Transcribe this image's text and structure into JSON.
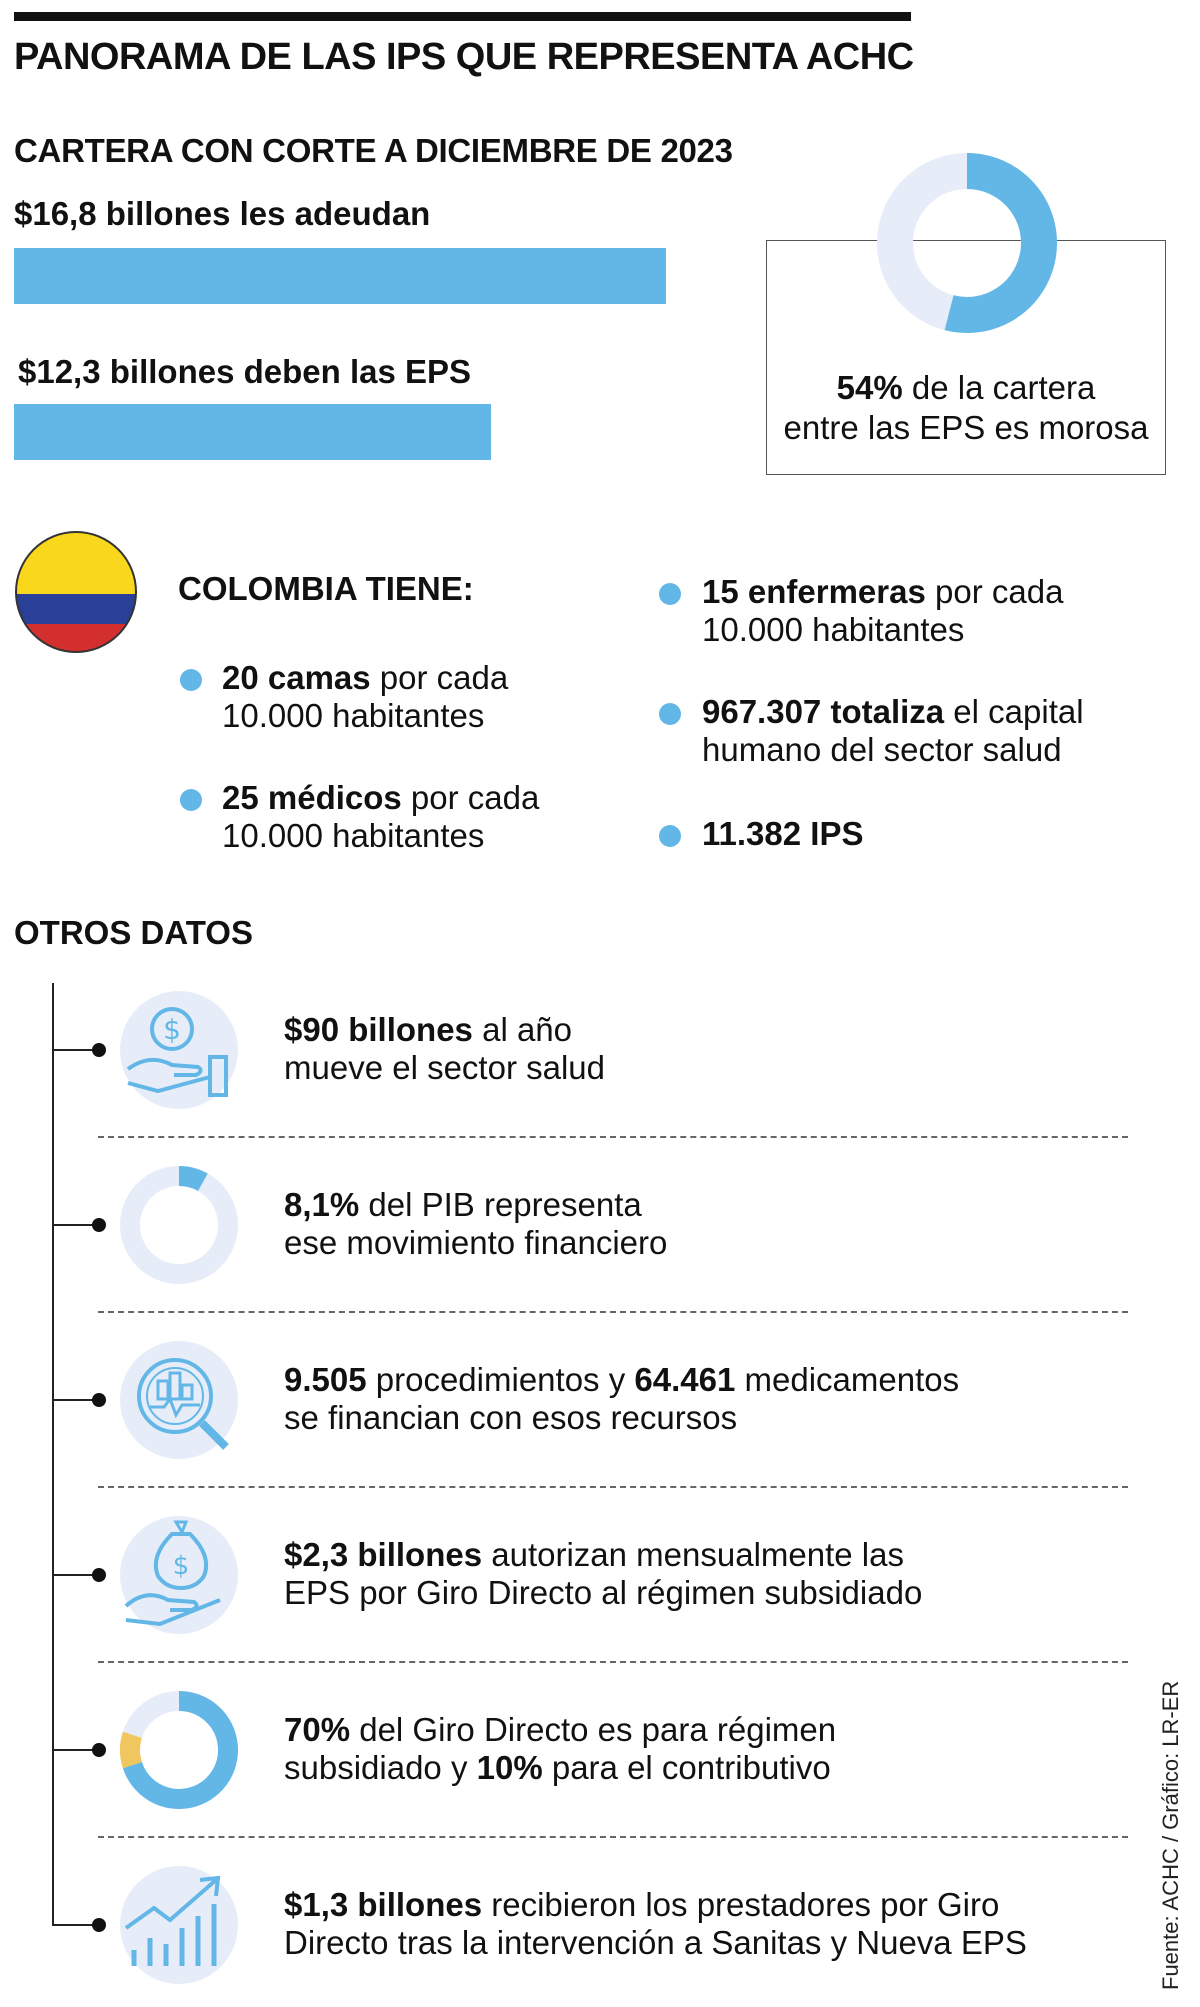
{
  "header": {
    "title": "PANORAMA DE LAS IPS QUE REPRESENTA ACHC",
    "subtitle": "CARTERA CON CORTE A DICIEMBRE DE 2023"
  },
  "chart_data": [
    {
      "type": "bar",
      "orientation": "horizontal",
      "categories": [
        "$16,8 billones les adeudan",
        "$12,3 billones deben las EPS"
      ],
      "values": [
        16.8,
        12.3
      ],
      "xlim": [
        0,
        16.8
      ],
      "color": "#63b7e7"
    },
    {
      "type": "pie",
      "donut": true,
      "values": [
        54,
        46
      ],
      "colors": [
        "#63b7e7",
        "#e7edf8"
      ],
      "label_bold": "54%",
      "label_line1": " de la cartera",
      "label_line2": "entre las EPS es morosa"
    }
  ],
  "colombia": {
    "heading": "COLOMBIA TIENE:",
    "flag_colors": [
      "#f9d71c",
      "#2a3f97",
      "#d32f2f"
    ],
    "items": [
      {
        "bold": "20 camas",
        "rest": " por cada",
        "line2": "10.000 habitantes"
      },
      {
        "bold": "25 médicos",
        "rest": " por cada",
        "line2": "10.000 habitantes"
      },
      {
        "bold": "15 enfermeras",
        "rest": " por cada",
        "line2": "10.000 habitantes"
      },
      {
        "bold": "967.307 totaliza",
        "rest": " el capital",
        "line2": "humano del sector salud"
      },
      {
        "bold": "11.382 IPS",
        "rest": "",
        "line2": ""
      }
    ]
  },
  "otros": {
    "heading": "OTROS DATOS",
    "items": [
      {
        "icon": "money-hand-icon",
        "b1": "$90 billones",
        "t1": " al año",
        "line2": "mueve el sector salud"
      },
      {
        "icon": "donut-8-1-icon",
        "pct": 8.1,
        "b1": "8,1%",
        "t1": " del PIB representa",
        "line2": "ese movimiento financiero"
      },
      {
        "icon": "magnifier-chart-icon",
        "b1": "9.505",
        "t1": " procedimientos y ",
        "b2": "64.461",
        "t2": " medicamentos",
        "line2": "se financian con esos recursos"
      },
      {
        "icon": "money-bag-hand-icon",
        "b1": "$2,3 billones",
        "t1": " autorizan mensualmente las",
        "line2": "EPS por Giro Directo al régimen subsidiado"
      },
      {
        "icon": "donut-70-10-icon",
        "pcts": [
          70,
          10
        ],
        "b1": "70%",
        "t1": " del Giro Directo es para régimen",
        "line2a": "subsidiado y ",
        "line2b": "10%",
        "line2c": " para el contributivo"
      },
      {
        "icon": "growth-chart-icon",
        "b1": "$1,3 billones",
        "t1": " recibieron los prestadores por Giro",
        "line2": "Directo tras la intervención a Sanitas y Nueva EPS"
      }
    ]
  },
  "source": "Fuente: ACHC / Gráfico: LR-ER"
}
